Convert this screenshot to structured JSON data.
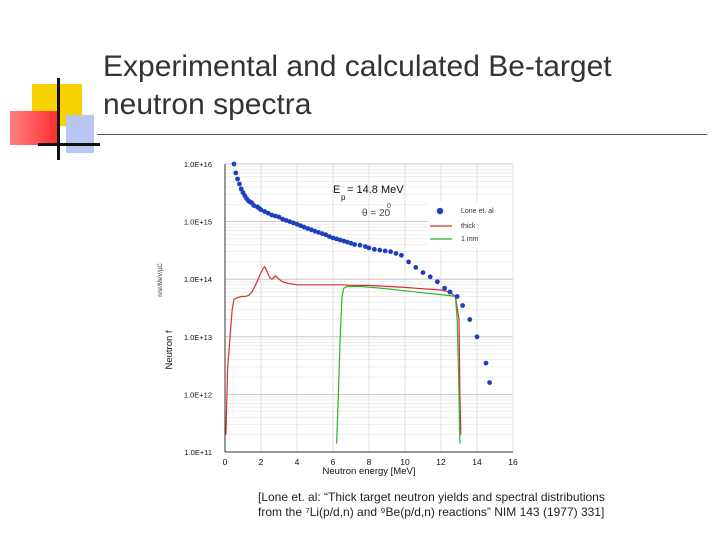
{
  "slide": {
    "title_line1": "Experimental and calculated Be-target",
    "title_line2": "neutron spectra",
    "citation_line1": "[Lone et. al: “Thick target neutron yields and spectral distributions",
    "citation_line2": "from the ⁷Li(p/d,n) and ⁹Be(p/d,n) reactions” NIM 143 (1977) 331]"
  },
  "colors": {
    "exp": "#1f3fbf",
    "thick": "#d62f2f",
    "thin": "#2bb52b",
    "grid": "#cfcfcf",
    "deco_yellow": "#f5d200",
    "deco_red": "#ff4040",
    "deco_blue": "#b9c6f2"
  },
  "chart_data": {
    "type": "scatter",
    "xlabel": "Neutron energy [MeV]",
    "ylabel": "Neutron f",
    "ylabel_small": "n/sr/MeV/µC",
    "yscale": "log",
    "xlim": [
      0,
      16
    ],
    "ylim": [
      100000000000.0,
      1e+16
    ],
    "xticks": [
      "0",
      "2",
      "4",
      "6",
      "8",
      "10",
      "12",
      "14",
      "16"
    ],
    "yticks": [
      "1.0E+11",
      "1.0E+12",
      "1.0E+13",
      "1.0E+14",
      "1.0E+15",
      "1.0E+16"
    ],
    "grid": true,
    "annotation": {
      "E_label": "E",
      "E_sub": "p",
      "E_value": "= 14.8 MeV",
      "theta_label": "θ = 20",
      "theta_sup": "0"
    },
    "legend_position": "top-right",
    "series": [
      {
        "name": "Lone et. al",
        "kind": "points",
        "x": [
          0.5,
          0.6,
          0.7,
          0.8,
          0.9,
          1.0,
          1.1,
          1.2,
          1.3,
          1.4,
          1.5,
          1.6,
          1.8,
          1.9,
          2.0,
          2.2,
          2.4,
          2.6,
          2.8,
          3.0,
          3.2,
          3.4,
          3.6,
          3.8,
          4.0,
          4.2,
          4.4,
          4.6,
          4.8,
          5.0,
          5.2,
          5.4,
          5.6,
          5.8,
          6.0,
          6.2,
          6.4,
          6.6,
          6.8,
          7.0,
          7.2,
          7.5,
          7.8,
          8.0,
          8.3,
          8.6,
          8.9,
          9.2,
          9.5,
          9.8,
          10.2,
          10.6,
          11.0,
          11.4,
          11.8,
          12.2,
          12.5,
          12.9,
          13.2,
          13.6,
          14.0,
          14.5,
          14.7
        ],
        "y": [
          1e+16,
          7000000000000000.0,
          5500000000000000.0,
          4500000000000000.0,
          3700000000000000.0,
          3200000000000000.0,
          2800000000000000.0,
          2500000000000000.0,
          2300000000000000.0,
          2200000000000000.0,
          2100000000000000.0,
          1900000000000000.0,
          1800000000000000.0,
          1700000000000000.0,
          1600000000000000.0,
          1500000000000000.0,
          1400000000000000.0,
          1300000000000000.0,
          1250000000000000.0,
          1200000000000000.0,
          1100000000000000.0,
          1050000000000000.0,
          1000000000000000.0,
          950000000000000.0,
          900000000000000.0,
          850000000000000.0,
          800000000000000.0,
          760000000000000.0,
          720000000000000.0,
          680000000000000.0,
          650000000000000.0,
          620000000000000.0,
          590000000000000.0,
          550000000000000.0,
          520000000000000.0,
          500000000000000.0,
          480000000000000.0,
          460000000000000.0,
          440000000000000.0,
          420000000000000.0,
          400000000000000.0,
          390000000000000.0,
          370000000000000.0,
          350000000000000.0,
          330000000000000.0,
          320000000000000.0,
          310000000000000.0,
          300000000000000.0,
          280000000000000.0,
          260000000000000.0,
          200000000000000.0,
          160000000000000.0,
          130000000000000.0,
          110000000000000.0,
          90000000000000.0,
          70000000000000.0,
          60000000000000.0,
          50000000000000.0,
          35000000000000.0,
          20000000000000.0,
          10000000000000.0,
          3500000000000.0,
          1600000000000.0
        ]
      },
      {
        "name": "thick",
        "kind": "line",
        "x": [
          0.05,
          0.15,
          0.3,
          0.4,
          0.5,
          0.7,
          0.9,
          1.1,
          1.3,
          1.5,
          1.7,
          1.9,
          2.0,
          2.1,
          2.2,
          2.3,
          2.4,
          2.5,
          2.6,
          2.7,
          2.8,
          3.0,
          3.2,
          3.5,
          4.0,
          4.5,
          5.0,
          5.5,
          6.0,
          6.5,
          7.0,
          7.5,
          8.0,
          9.0,
          10.0,
          11.0,
          12.0,
          12.5,
          12.8,
          13.0,
          13.05,
          13.1
        ],
        "y": [
          200000000000.0,
          3000000000000.0,
          12000000000000.0,
          30000000000000.0,
          45000000000000.0,
          48000000000000.0,
          50000000000000.0,
          50000000000000.0,
          52000000000000.0,
          60000000000000.0,
          80000000000000.0,
          110000000000000.0,
          130000000000000.0,
          150000000000000.0,
          165000000000000.0,
          145000000000000.0,
          120000000000000.0,
          105000000000000.0,
          100000000000000.0,
          105000000000000.0,
          115000000000000.0,
          100000000000000.0,
          90000000000000.0,
          85000000000000.0,
          80000000000000.0,
          80000000000000.0,
          80000000000000.0,
          80000000000000.0,
          80000000000000.0,
          80000000000000.0,
          78000000000000.0,
          78000000000000.0,
          78000000000000.0,
          75000000000000.0,
          72000000000000.0,
          68000000000000.0,
          65000000000000.0,
          60000000000000.0,
          50000000000000.0,
          20000000000000.0,
          1000000000000.0,
          200000000000.0
        ]
      },
      {
        "name": "1 mm",
        "kind": "line",
        "x": [
          6.2,
          6.3,
          6.4,
          6.5,
          6.6,
          6.8,
          7.0,
          7.5,
          8.0,
          9.0,
          10.0,
          11.0,
          12.0,
          12.5,
          12.8,
          12.9,
          13.0,
          13.05
        ],
        "y": [
          140000000000.0,
          1000000000000.0,
          10000000000000.0,
          50000000000000.0,
          70000000000000.0,
          75000000000000.0,
          75000000000000.0,
          75000000000000.0,
          73000000000000.0,
          68000000000000.0,
          63000000000000.0,
          58000000000000.0,
          54000000000000.0,
          52000000000000.0,
          50000000000000.0,
          20000000000000.0,
          1000000000000.0,
          140000000000.0
        ]
      }
    ]
  }
}
